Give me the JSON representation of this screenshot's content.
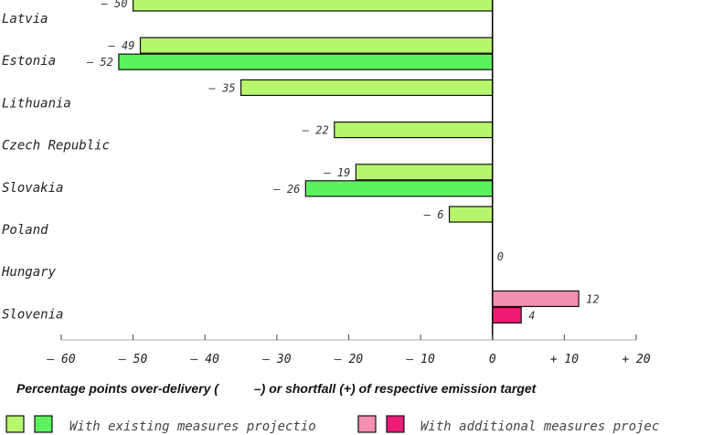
{
  "chart_data": {
    "type": "bar",
    "orientation": "horizontal",
    "categories": [
      "Latvia",
      "Estonia",
      "Lithuania",
      "Czech Republic",
      "Slovakia",
      "Poland",
      "Hungary",
      "Slovenia"
    ],
    "series": [
      {
        "name": "With existing measures projections",
        "values": [
          -50,
          -49,
          -35,
          -22,
          -19,
          -6,
          0,
          null
        ],
        "value_labels": [
          "– 50",
          "– 49",
          "– 35",
          "– 22",
          "– 19",
          "– 6",
          "0",
          ""
        ],
        "color": "#b7f56c"
      },
      {
        "name": "With existing measures projections",
        "values": [
          null,
          -52,
          null,
          null,
          -26,
          null,
          null,
          null
        ],
        "value_labels": [
          "",
          "– 52",
          "",
          "",
          "– 26",
          "",
          "",
          ""
        ],
        "color": "#5cf25c"
      },
      {
        "name": "With additional measures projections",
        "values": [
          null,
          null,
          null,
          null,
          null,
          null,
          null,
          12
        ],
        "value_labels": [
          "",
          "",
          "",
          "",
          "",
          "",
          "",
          "12"
        ],
        "color": "#f58fb0"
      },
      {
        "name": "With additional measures projections",
        "values": [
          null,
          null,
          null,
          null,
          null,
          null,
          null,
          4
        ],
        "value_labels": [
          "",
          "",
          "",
          "",
          "",
          "",
          "",
          "4"
        ],
        "color": "#ee1a75"
      }
    ],
    "xlim": [
      -60,
      20
    ],
    "xticks": [
      -60,
      -50,
      -40,
      -30,
      -20,
      -10,
      0,
      10,
      20
    ],
    "xtick_labels": [
      "– 60",
      "– 50",
      "– 40",
      "– 30",
      "– 20",
      "– 10",
      "0",
      "+ 10",
      "+ 20"
    ],
    "xlabel": "Percentage points over-delivery (          –) or shortfall (+) of respective emission target",
    "grid": false,
    "legend_position": "bottom",
    "legend": [
      {
        "label": "With existing measures projectio",
        "colors": [
          "#b7f56c",
          "#5cf25c"
        ]
      },
      {
        "label": "With additional measures projec",
        "colors": [
          "#f58fb0",
          "#ee1a75"
        ]
      }
    ]
  }
}
